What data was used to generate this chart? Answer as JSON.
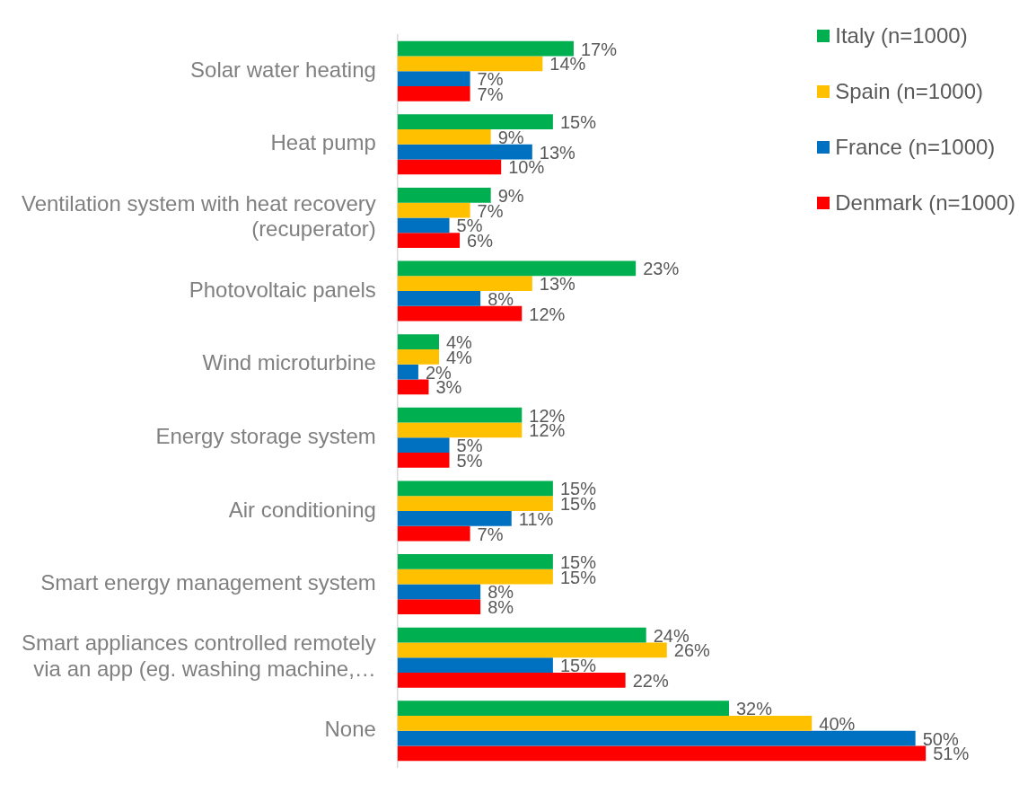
{
  "chart_data": {
    "type": "bar",
    "orientation": "horizontal",
    "legend": "top right",
    "tick_labels": "y",
    "grid": false,
    "categories": [
      "Solar water heating",
      "Heat pump",
      "Ventilation system with heat recovery (recuperator)",
      "Photovoltaic panels",
      "Wind microturbine",
      "Energy storage system",
      "Air conditioning",
      "Smart energy management system",
      "Smart appliances controlled remotely via an app (eg. washing machine,…",
      "None"
    ],
    "series": [
      {
        "name": "Italy (n=1000)",
        "color": "#00b050",
        "values": [
          17,
          15,
          9,
          23,
          4,
          12,
          15,
          15,
          24,
          32
        ],
        "value_labels": [
          "17%",
          "15%",
          "9%",
          "23%",
          "4%",
          "12%",
          "15%",
          "15%",
          "24%",
          "32%"
        ]
      },
      {
        "name": "Spain (n=1000)",
        "color": "#ffc000",
        "values": [
          14,
          9,
          7,
          13,
          4,
          12,
          15,
          15,
          26,
          40
        ],
        "value_labels": [
          "14%",
          "9%",
          "7%",
          "13%",
          "4%",
          "12%",
          "15%",
          "15%",
          "26%",
          "40%"
        ]
      },
      {
        "name": "France (n=1000)",
        "color": "#0070c0",
        "values": [
          7,
          13,
          5,
          8,
          2,
          5,
          11,
          8,
          15,
          50
        ],
        "value_labels": [
          "7%",
          "13%",
          "5%",
          "8%",
          "2%",
          "5%",
          "11%",
          "8%",
          "15%",
          "50%"
        ]
      },
      {
        "name": "Denmark (n=1000)",
        "color": "#ff0000",
        "values": [
          7,
          10,
          6,
          12,
          3,
          5,
          7,
          8,
          22,
          51
        ],
        "value_labels": [
          "7%",
          "10%",
          "6%",
          "12%",
          "3%",
          "5%",
          "7%",
          "8%",
          "22%",
          "51%"
        ]
      }
    ]
  }
}
